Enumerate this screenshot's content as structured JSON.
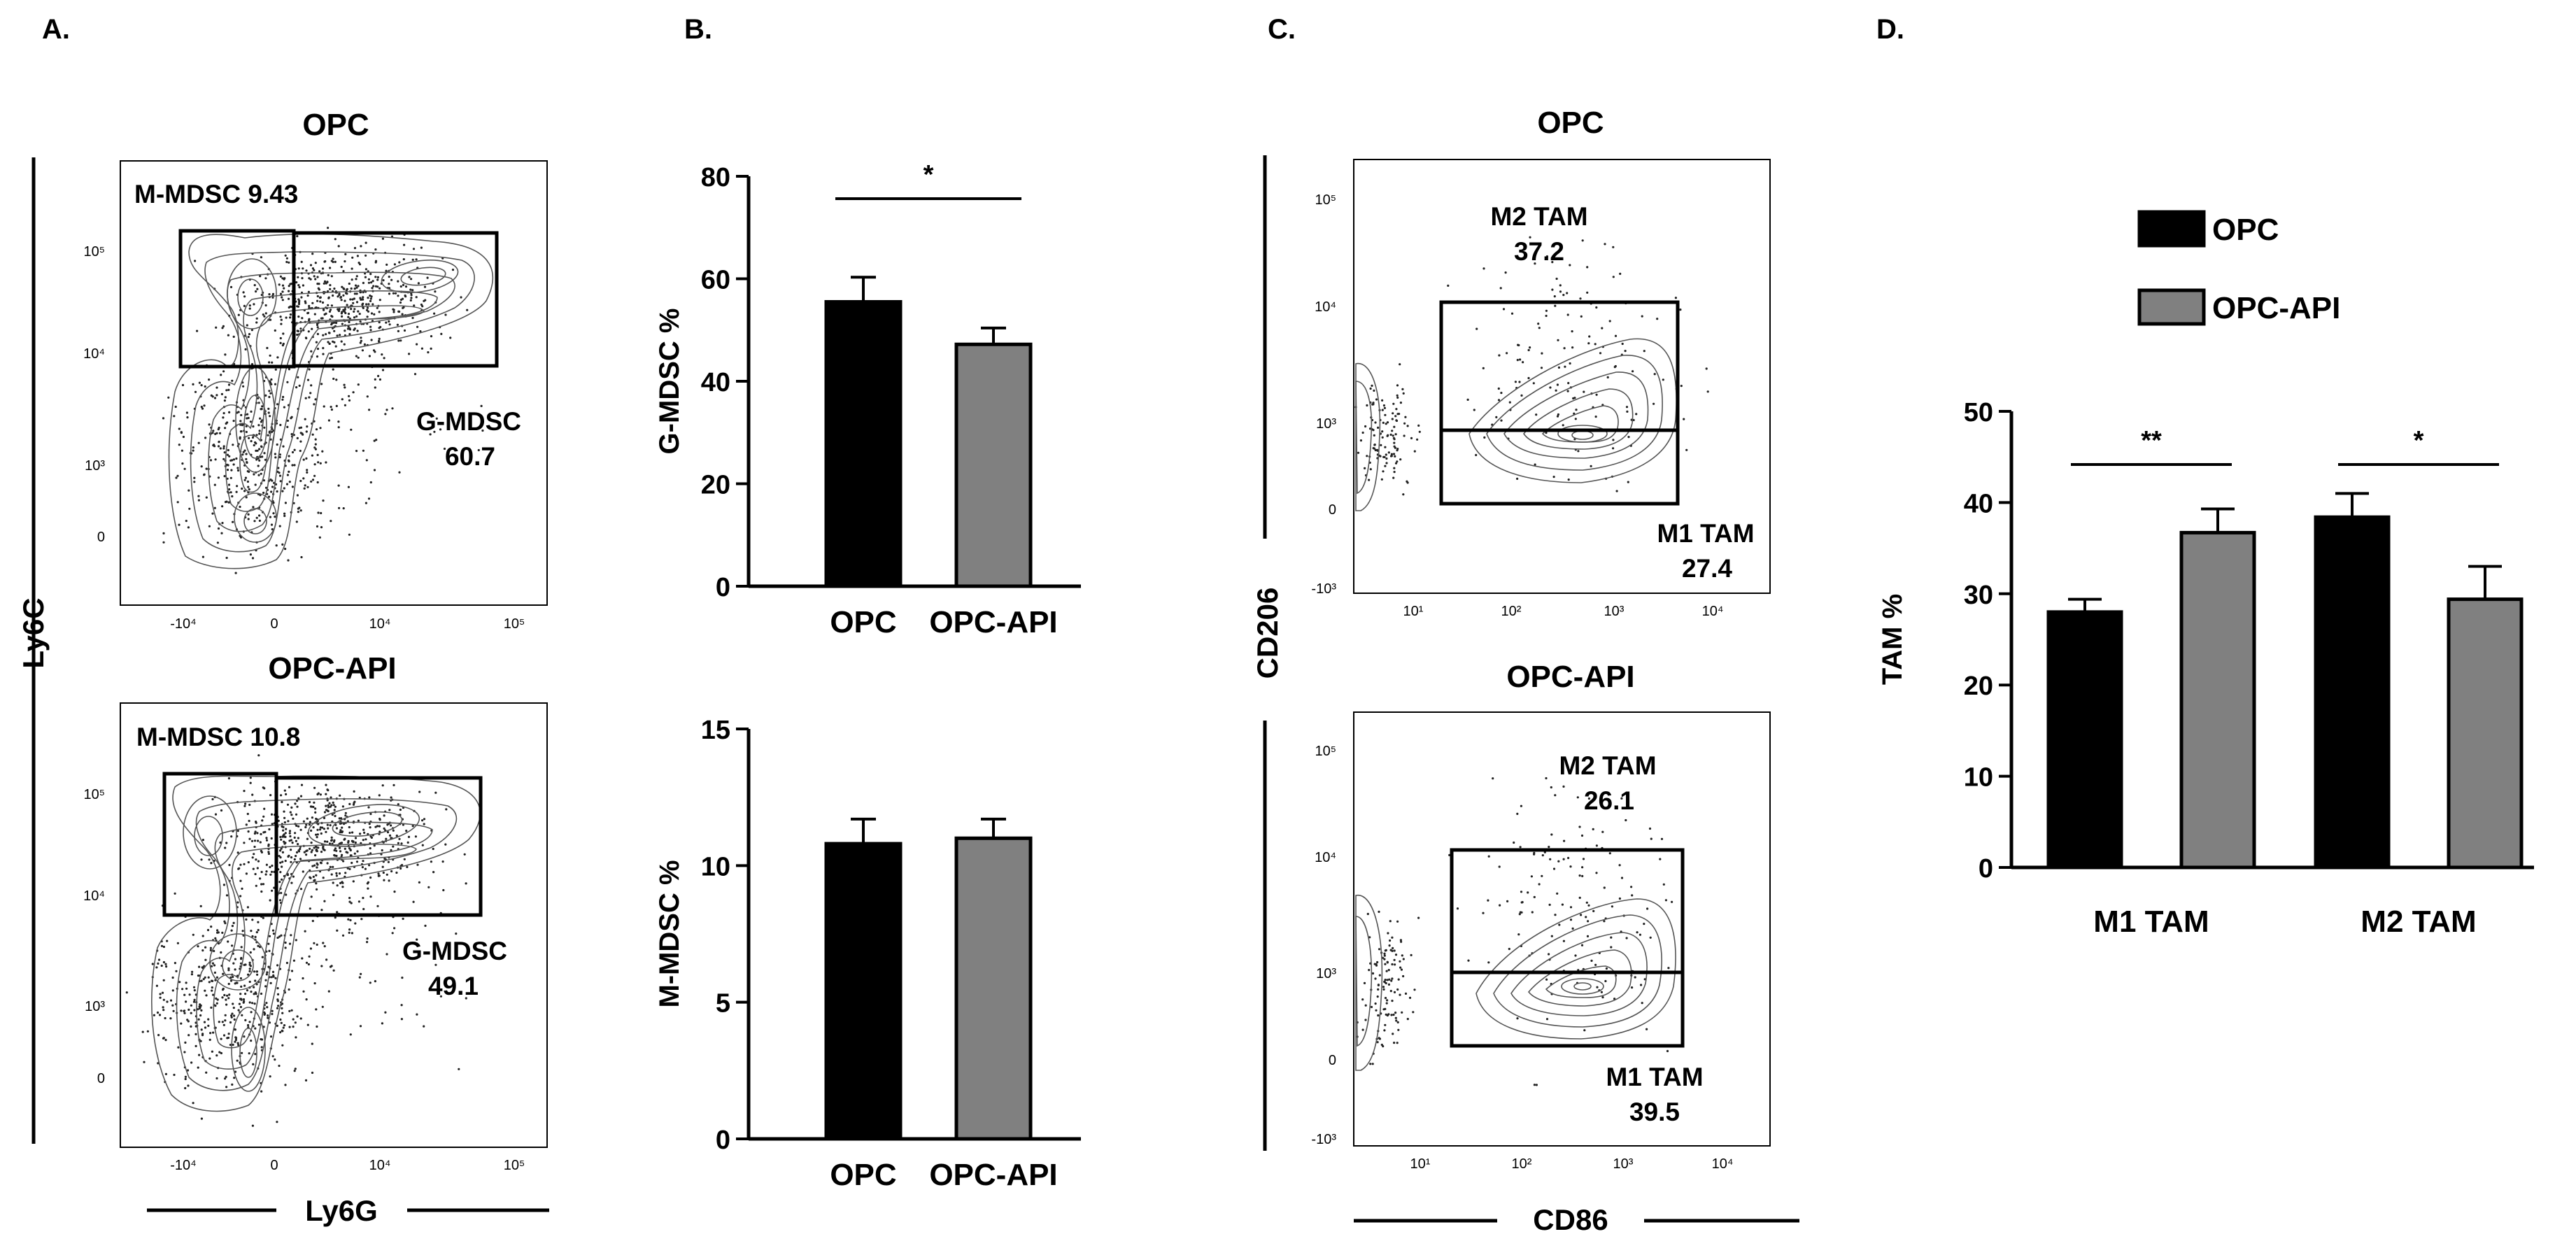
{
  "panels": {
    "A": {
      "letter": "A.",
      "y_axis_label": "Ly6C",
      "x_axis_label": "Ly6G",
      "plots": [
        {
          "title": "OPC",
          "gate_left_label": "M-MDSC 9.43",
          "gate_right_name": "G-MDSC",
          "gate_right_value": "60.7",
          "x_ticks": [
            "-10⁴",
            "0",
            "10⁴",
            "10⁵"
          ],
          "y_ticks": [
            "10⁵",
            "10⁴",
            "10³",
            "0"
          ]
        },
        {
          "title": "OPC-API",
          "gate_left_label": "M-MDSC 10.8",
          "gate_right_name": "G-MDSC",
          "gate_right_value": "49.1",
          "x_ticks": [
            "-10⁴",
            "0",
            "10⁴",
            "10⁵"
          ],
          "y_ticks": [
            "10⁵",
            "10⁴",
            "10³",
            "0"
          ]
        }
      ]
    },
    "C": {
      "letter": "C.",
      "y_axis_label": "CD206",
      "x_axis_label": "CD86",
      "plots": [
        {
          "title": "OPC",
          "upper_gate_name": "M2 TAM",
          "upper_gate_value": "37.2",
          "lower_gate_name": "M1 TAM",
          "lower_gate_value": "27.4",
          "x_ticks": [
            "10¹",
            "10²",
            "10³",
            "10⁴"
          ],
          "y_ticks": [
            "10⁵",
            "10⁴",
            "10³",
            "0",
            "-10³"
          ]
        },
        {
          "title": "OPC-API",
          "upper_gate_name": "M2 TAM",
          "upper_gate_value": "26.1",
          "lower_gate_name": "M1 TAM",
          "lower_gate_value": "39.5",
          "x_ticks": [
            "10¹",
            "10²",
            "10³",
            "10⁴"
          ],
          "y_ticks": [
            "10⁵",
            "10⁴",
            "10³",
            "0",
            "-10³"
          ]
        }
      ]
    }
  },
  "colors": {
    "opc": "#000000",
    "opc_api": "#808080",
    "axis": "#000000"
  },
  "chart_data": [
    {
      "panel": "B",
      "letter": "B.",
      "type": "bar",
      "categories": [
        "OPC",
        "OPC-API"
      ],
      "values": [
        55.5,
        47.2
      ],
      "errors": [
        4.8,
        3.2
      ],
      "ylabel": "G-MDSC %",
      "ylim": [
        0,
        80
      ],
      "yticks": [
        0,
        20,
        40,
        60,
        80
      ],
      "significance": [
        {
          "from": 0,
          "to": 1,
          "label": "*"
        }
      ]
    },
    {
      "panel": "B",
      "letter": "",
      "type": "bar",
      "categories": [
        "OPC",
        "OPC-API"
      ],
      "values": [
        10.8,
        11.0
      ],
      "errors": [
        0.9,
        0.7
      ],
      "ylabel": "M-MDSC %",
      "ylim": [
        0,
        15
      ],
      "yticks": [
        0,
        5,
        10,
        15
      ],
      "significance": []
    },
    {
      "panel": "D",
      "letter": "D.",
      "type": "bar",
      "categories": [
        "M1 TAM",
        "M2 TAM"
      ],
      "series": [
        {
          "name": "OPC",
          "values": [
            28.0,
            38.4
          ],
          "errors": [
            1.4,
            2.6
          ]
        },
        {
          "name": "OPC-API",
          "values": [
            36.7,
            29.4
          ],
          "errors": [
            2.6,
            3.6
          ]
        }
      ],
      "ylabel": "TAM %",
      "ylim": [
        0,
        50
      ],
      "yticks": [
        0,
        10,
        20,
        30,
        40,
        50
      ],
      "legend": "top",
      "significance": [
        {
          "category": 0,
          "label": "**"
        },
        {
          "category": 1,
          "label": "*"
        }
      ]
    }
  ]
}
